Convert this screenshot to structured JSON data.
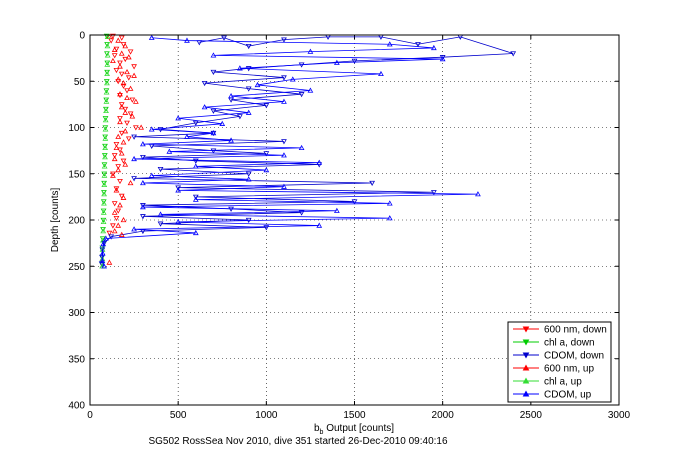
{
  "chart_data": {
    "type": "scatter",
    "title": "",
    "xlabel_main": "b",
    "xlabel_sub": "b",
    "xlabel_rest": " Output [counts]",
    "ylabel": "Depth [counts]",
    "caption": "SG502 RossSea Nov 2010, dive 351 started 26-Dec-2010 09:40:16",
    "xlim": [
      0,
      3000
    ],
    "ylim": [
      0,
      400
    ],
    "y_reversed": true,
    "x_ticks": [
      0,
      500,
      1000,
      1500,
      2000,
      2500,
      3000
    ],
    "y_ticks": [
      0,
      50,
      100,
      150,
      200,
      250,
      300,
      350,
      400
    ],
    "grid": true,
    "legend_position": "bottom-right",
    "series": [
      {
        "name": "600 nm, down",
        "color": "#ff0000",
        "marker": "triangle-down",
        "connected": false,
        "points": [
          [
            130,
            1
          ],
          [
            180,
            3
          ],
          [
            120,
            6
          ],
          [
            190,
            10
          ],
          [
            150,
            15
          ],
          [
            230,
            18
          ],
          [
            140,
            22
          ],
          [
            200,
            26
          ],
          [
            170,
            30
          ],
          [
            250,
            34
          ],
          [
            150,
            38
          ],
          [
            180,
            42
          ],
          [
            220,
            46
          ],
          [
            160,
            50
          ],
          [
            190,
            55
          ],
          [
            210,
            60
          ],
          [
            170,
            65
          ],
          [
            240,
            70
          ],
          [
            180,
            75
          ],
          [
            200,
            80
          ],
          [
            230,
            85
          ],
          [
            170,
            90
          ],
          [
            210,
            95
          ],
          [
            260,
            100
          ],
          [
            180,
            106
          ],
          [
            220,
            112
          ],
          [
            150,
            118
          ],
          [
            170,
            124
          ],
          [
            140,
            130
          ],
          [
            190,
            136
          ],
          [
            160,
            142
          ],
          [
            130,
            150
          ],
          [
            170,
            158
          ],
          [
            150,
            166
          ],
          [
            180,
            174
          ],
          [
            140,
            182
          ],
          [
            160,
            190
          ],
          [
            150,
            198
          ],
          [
            130,
            206
          ],
          [
            110,
            214
          ]
        ]
      },
      {
        "name": "chl a, down",
        "color": "#00cc00",
        "marker": "triangle-down",
        "connected": false,
        "points": [
          [
            95,
            1
          ],
          [
            97,
            10
          ],
          [
            96,
            20
          ],
          [
            98,
            30
          ],
          [
            97,
            40
          ],
          [
            95,
            50
          ],
          [
            93,
            60
          ],
          [
            92,
            70
          ],
          [
            90,
            80
          ],
          [
            88,
            90
          ],
          [
            87,
            100
          ],
          [
            86,
            110
          ],
          [
            85,
            120
          ],
          [
            84,
            130
          ],
          [
            82,
            140
          ],
          [
            81,
            150
          ],
          [
            80,
            160
          ],
          [
            79,
            170
          ],
          [
            78,
            180
          ],
          [
            77,
            190
          ],
          [
            76,
            200
          ],
          [
            74,
            210
          ],
          [
            72,
            220
          ],
          [
            70,
            230
          ],
          [
            69,
            240
          ],
          [
            68,
            248
          ]
        ]
      },
      {
        "name": "CDOM, down",
        "color": "#0000cc",
        "marker": "triangle-down",
        "connected": true,
        "points": [
          [
            620,
            8
          ],
          [
            760,
            3
          ],
          [
            900,
            12
          ],
          [
            1100,
            5
          ],
          [
            1350,
            2
          ],
          [
            1650,
            2
          ],
          [
            1860,
            10
          ],
          [
            2100,
            2
          ],
          [
            2400,
            20
          ],
          [
            2000,
            24
          ],
          [
            1500,
            28
          ],
          [
            1200,
            32
          ],
          [
            900,
            36
          ],
          [
            700,
            40
          ],
          [
            1100,
            46
          ],
          [
            650,
            52
          ],
          [
            900,
            58
          ],
          [
            1200,
            64
          ],
          [
            800,
            70
          ],
          [
            1000,
            76
          ],
          [
            700,
            82
          ],
          [
            850,
            88
          ],
          [
            600,
            95
          ],
          [
            400,
            102
          ],
          [
            700,
            106
          ],
          [
            250,
            110
          ],
          [
            1100,
            115
          ],
          [
            350,
            120
          ],
          [
            700,
            125
          ],
          [
            1000,
            128
          ],
          [
            300,
            132
          ],
          [
            600,
            136
          ],
          [
            1300,
            140
          ],
          [
            400,
            145
          ],
          [
            900,
            150
          ],
          [
            250,
            155
          ],
          [
            1600,
            160
          ],
          [
            500,
            165
          ],
          [
            1950,
            170
          ],
          [
            600,
            175
          ],
          [
            1500,
            180
          ],
          [
            300,
            184
          ],
          [
            800,
            188
          ],
          [
            1200,
            192
          ],
          [
            300,
            196
          ],
          [
            900,
            200
          ],
          [
            400,
            204
          ],
          [
            1000,
            208
          ],
          [
            300,
            212
          ],
          [
            120,
            218
          ],
          [
            80,
            225
          ],
          [
            70,
            232
          ],
          [
            68,
            240
          ],
          [
            66,
            247
          ]
        ]
      },
      {
        "name": "600 nm, up",
        "color": "#ff0000",
        "marker": "triangle-up",
        "connected": false,
        "points": [
          [
            110,
            2
          ],
          [
            160,
            6
          ],
          [
            200,
            12
          ],
          [
            140,
            16
          ],
          [
            180,
            20
          ],
          [
            220,
            24
          ],
          [
            130,
            28
          ],
          [
            170,
            34
          ],
          [
            210,
            40
          ],
          [
            250,
            44
          ],
          [
            160,
            48
          ],
          [
            190,
            52
          ],
          [
            230,
            58
          ],
          [
            170,
            64
          ],
          [
            210,
            68
          ],
          [
            260,
            72
          ],
          [
            180,
            78
          ],
          [
            200,
            84
          ],
          [
            240,
            88
          ],
          [
            170,
            94
          ],
          [
            290,
            100
          ],
          [
            200,
            104
          ],
          [
            160,
            110
          ],
          [
            190,
            116
          ],
          [
            150,
            122
          ],
          [
            180,
            128
          ],
          [
            140,
            134
          ],
          [
            200,
            140
          ],
          [
            160,
            146
          ],
          [
            130,
            152
          ],
          [
            230,
            160
          ],
          [
            150,
            168
          ],
          [
            190,
            176
          ],
          [
            170,
            184
          ],
          [
            140,
            192
          ],
          [
            190,
            200
          ],
          [
            160,
            206
          ],
          [
            140,
            212
          ],
          [
            180,
            216
          ],
          [
            110,
            246
          ]
        ]
      },
      {
        "name": "chl a, up",
        "color": "#33dd33",
        "marker": "triangle-up",
        "connected": false,
        "points": [
          [
            100,
            2
          ],
          [
            99,
            12
          ],
          [
            100,
            22
          ],
          [
            98,
            32
          ],
          [
            97,
            42
          ],
          [
            96,
            52
          ],
          [
            94,
            62
          ],
          [
            93,
            72
          ],
          [
            91,
            82
          ],
          [
            89,
            92
          ],
          [
            88,
            102
          ],
          [
            87,
            112
          ],
          [
            86,
            122
          ],
          [
            85,
            132
          ],
          [
            83,
            142
          ],
          [
            82,
            152
          ],
          [
            81,
            162
          ],
          [
            80,
            172
          ],
          [
            79,
            182
          ],
          [
            78,
            192
          ],
          [
            77,
            202
          ],
          [
            75,
            212
          ],
          [
            73,
            222
          ],
          [
            71,
            232
          ],
          [
            70,
            242
          ],
          [
            69,
            250
          ]
        ]
      },
      {
        "name": "CDOM, up",
        "color": "#0000ff",
        "marker": "triangle-up",
        "connected": true,
        "points": [
          [
            80,
            250
          ],
          [
            70,
            244
          ],
          [
            72,
            236
          ],
          [
            75,
            226
          ],
          [
            90,
            220
          ],
          [
            600,
            214
          ],
          [
            250,
            210
          ],
          [
            1300,
            206
          ],
          [
            500,
            202
          ],
          [
            1700,
            198
          ],
          [
            400,
            194
          ],
          [
            1400,
            190
          ],
          [
            300,
            186
          ],
          [
            1700,
            182
          ],
          [
            600,
            178
          ],
          [
            2200,
            172
          ],
          [
            500,
            168
          ],
          [
            1100,
            164
          ],
          [
            300,
            160
          ],
          [
            900,
            156
          ],
          [
            350,
            152
          ],
          [
            1000,
            146
          ],
          [
            600,
            142
          ],
          [
            1300,
            138
          ],
          [
            250,
            134
          ],
          [
            1100,
            130
          ],
          [
            450,
            126
          ],
          [
            1200,
            122
          ],
          [
            300,
            118
          ],
          [
            800,
            114
          ],
          [
            550,
            110
          ],
          [
            700,
            106
          ],
          [
            350,
            102
          ],
          [
            750,
            96
          ],
          [
            500,
            90
          ],
          [
            900,
            84
          ],
          [
            650,
            78
          ],
          [
            1100,
            72
          ],
          [
            800,
            66
          ],
          [
            1250,
            60
          ],
          [
            950,
            54
          ],
          [
            1150,
            48
          ],
          [
            1650,
            42
          ],
          [
            850,
            36
          ],
          [
            1400,
            30
          ],
          [
            2000,
            26
          ],
          [
            700,
            22
          ],
          [
            1250,
            18
          ],
          [
            1950,
            14
          ],
          [
            1700,
            10
          ],
          [
            550,
            6
          ],
          [
            350,
            3
          ]
        ]
      }
    ]
  }
}
